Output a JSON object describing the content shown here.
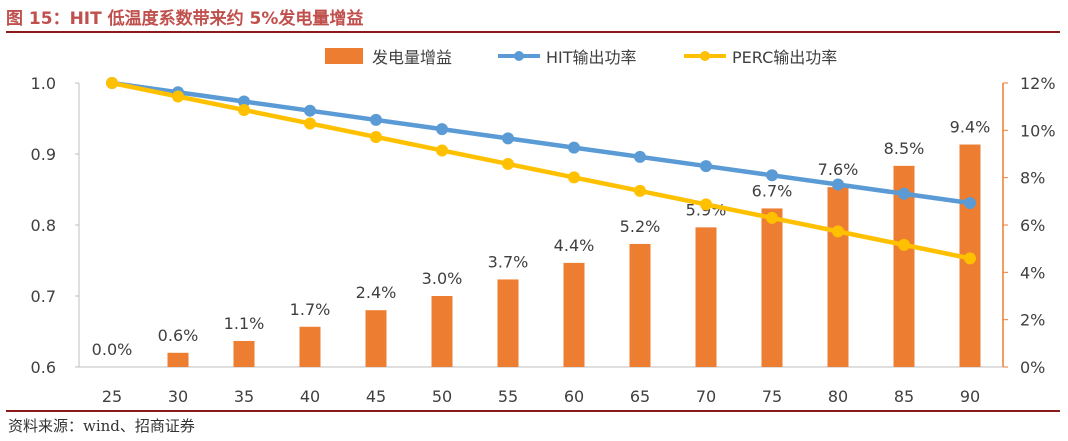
{
  "header": {
    "title": "图 15：HIT 低温度系数带来约 5%发电量增益"
  },
  "footer": {
    "source": "资料来源：wind、招商证券"
  },
  "colors": {
    "bar": "#ed7d31",
    "hit": "#5b9bd5",
    "perc": "#ffc000",
    "right_axis": "#ed7d31",
    "title": "#c0504d"
  },
  "chart_data": {
    "type": "bar+line",
    "categories": [
      "25",
      "30",
      "35",
      "40",
      "45",
      "50",
      "55",
      "60",
      "65",
      "70",
      "75",
      "80",
      "85",
      "90"
    ],
    "bar_series": {
      "name": "发电量增益",
      "values": [
        0.0,
        0.6,
        1.1,
        1.7,
        2.4,
        3.0,
        3.7,
        4.4,
        5.2,
        5.9,
        6.7,
        7.6,
        8.5,
        9.4
      ],
      "labels": [
        "0.0%",
        "0.6%",
        "1.1%",
        "1.7%",
        "2.4%",
        "3.0%",
        "3.7%",
        "4.4%",
        "5.2%",
        "5.9%",
        "6.7%",
        "7.6%",
        "8.5%",
        "9.4%"
      ],
      "axis": "right"
    },
    "line_series": [
      {
        "name": "HIT输出功率",
        "values": [
          1.0,
          0.987,
          0.974,
          0.961,
          0.948,
          0.935,
          0.922,
          0.909,
          0.896,
          0.883,
          0.87,
          0.857,
          0.844,
          0.831
        ],
        "axis": "left"
      },
      {
        "name": "PERC输出功率",
        "values": [
          1.0,
          0.981,
          0.962,
          0.943,
          0.924,
          0.905,
          0.886,
          0.867,
          0.848,
          0.829,
          0.81,
          0.791,
          0.772,
          0.753
        ],
        "axis": "left"
      }
    ],
    "left_axis": {
      "min": 0.6,
      "max": 1.0,
      "ticks": [
        "1.0",
        "0.9",
        "0.8",
        "0.7",
        "0.6"
      ],
      "tick_values": [
        1.0,
        0.9,
        0.8,
        0.7,
        0.6
      ]
    },
    "right_axis": {
      "min": 0,
      "max": 12,
      "ticks": [
        "12%",
        "10%",
        "8%",
        "6%",
        "4%",
        "2%",
        "0%"
      ],
      "tick_values": [
        12,
        10,
        8,
        6,
        4,
        2,
        0
      ]
    },
    "legend": [
      "发电量增益",
      "HIT输出功率",
      "PERC输出功率"
    ],
    "legend_position": "top",
    "grid": false
  }
}
